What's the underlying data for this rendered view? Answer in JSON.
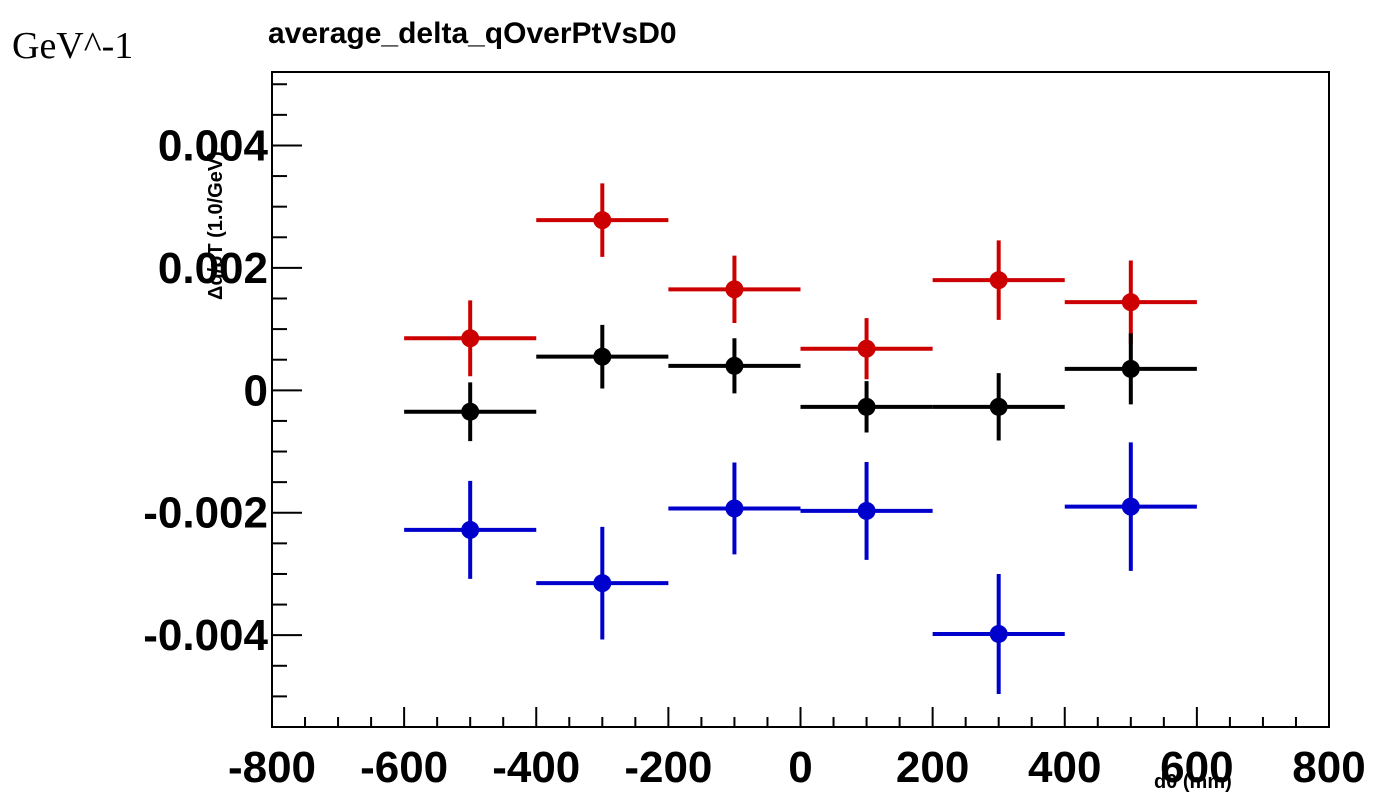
{
  "unit_label": "GeV^-1",
  "chart_data": {
    "type": "scatter",
    "title": "average_delta_qOverPtVsD0",
    "xlabel": "d0 (mm)",
    "ylabel": "Δq/pT (1.0/GeV)",
    "xlim": [
      -800,
      800
    ],
    "ylim": [
      -0.0055,
      0.0052
    ],
    "x_ticks": [
      -800,
      -600,
      -400,
      -200,
      0,
      200,
      400,
      600,
      800
    ],
    "x_tick_labels": [
      "-800",
      "-600",
      "-400",
      "-200",
      "0",
      "200",
      "400",
      "600",
      "800"
    ],
    "y_ticks": [
      0.004,
      0.002,
      0,
      -0.002,
      -0.004
    ],
    "y_tick_labels": [
      "0.004",
      "0.002",
      "0",
      "-0.002",
      "-0.004"
    ],
    "grid": false,
    "series": [
      {
        "color": "#cc0000",
        "x": [
          -500,
          -300,
          -100,
          100,
          300,
          500
        ],
        "x_err": [
          100,
          100,
          100,
          100,
          100,
          100
        ],
        "y": [
          0.00085,
          0.00278,
          0.00165,
          0.00068,
          0.0018,
          0.00144
        ],
        "y_err": [
          0.00062,
          0.0006,
          0.00055,
          0.0005,
          0.00065,
          0.00068
        ]
      },
      {
        "color": "#000000",
        "x": [
          -500,
          -300,
          -100,
          100,
          300,
          500
        ],
        "x_err": [
          100,
          100,
          100,
          100,
          100,
          100
        ],
        "y": [
          -0.00035,
          0.00055,
          0.0004,
          -0.00027,
          -0.00027,
          0.00035
        ],
        "y_err": [
          0.00048,
          0.00052,
          0.00045,
          0.00042,
          0.00055,
          0.00058
        ]
      },
      {
        "color": "#0000cc",
        "x": [
          -500,
          -300,
          -100,
          100,
          300,
          500
        ],
        "x_err": [
          100,
          100,
          100,
          100,
          100,
          100
        ],
        "y": [
          -0.00228,
          -0.00315,
          -0.00193,
          -0.00197,
          -0.00398,
          -0.0019
        ],
        "y_err": [
          0.0008,
          0.00092,
          0.00075,
          0.0008,
          0.00098,
          0.00105
        ]
      }
    ]
  }
}
